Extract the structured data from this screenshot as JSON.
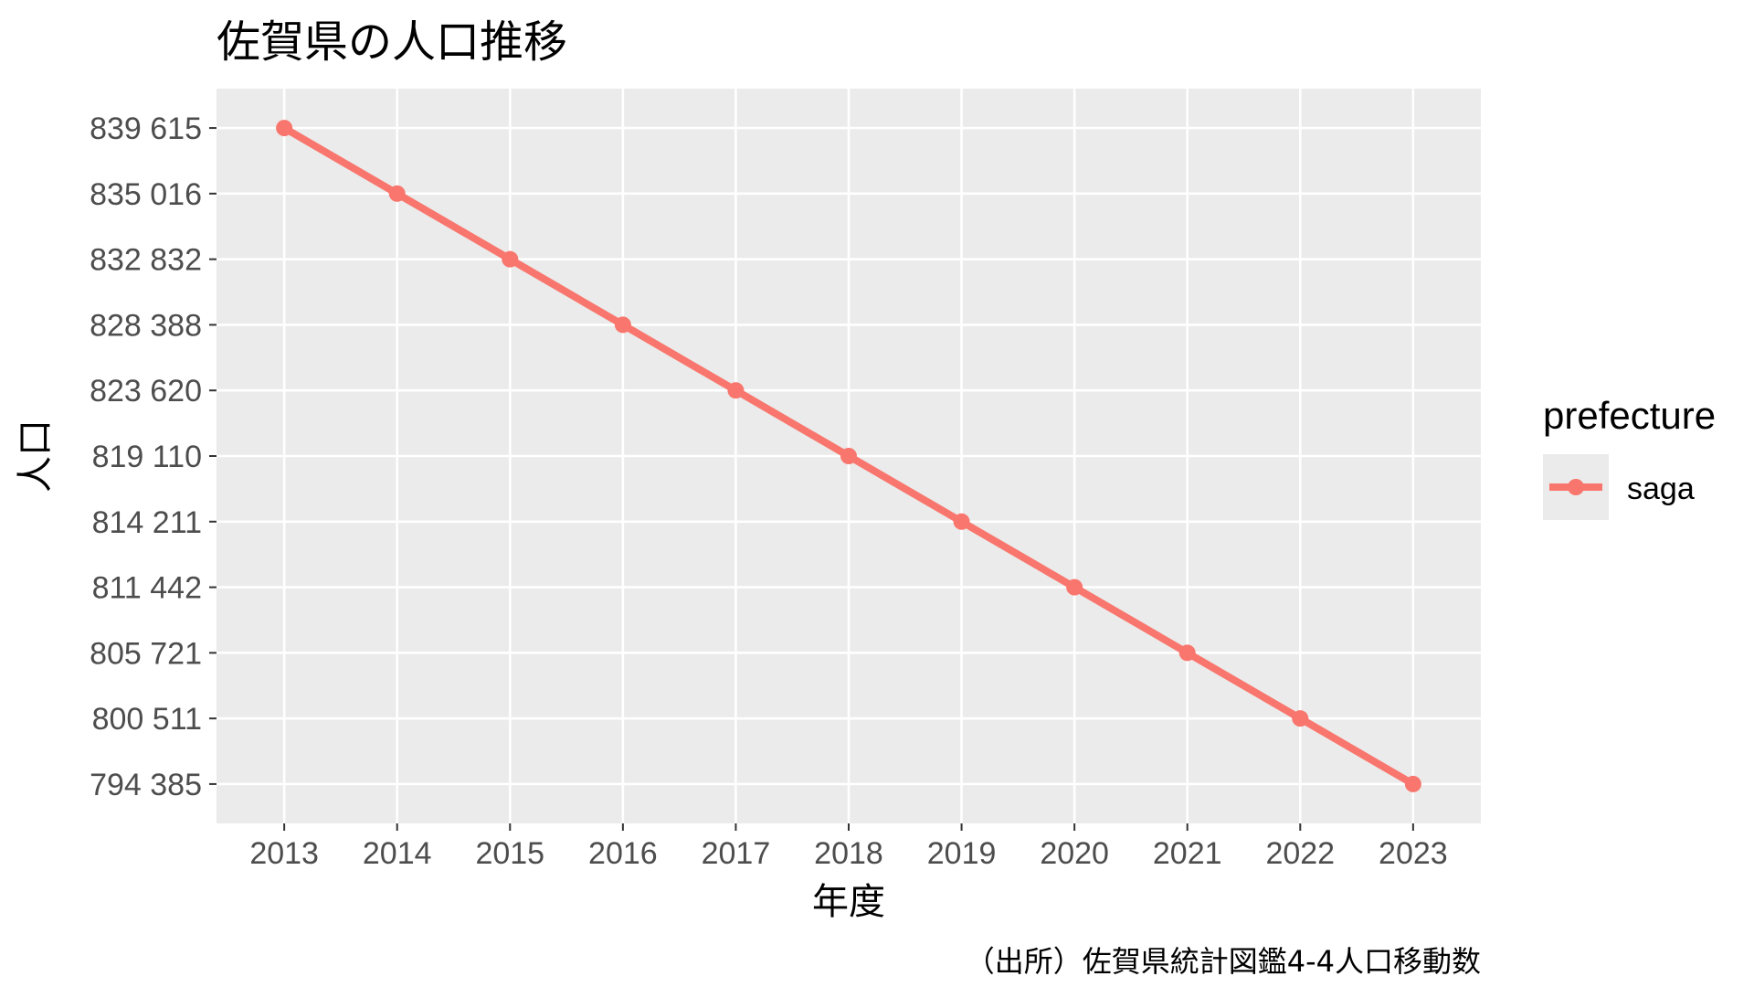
{
  "chart_data": {
    "type": "line",
    "title": "佐賀県の人口推移",
    "xlabel": "年度",
    "ylabel": "人口",
    "caption": "（出所）佐賀県統計図鑑4-4人口移動数",
    "categories": [
      "2013",
      "2014",
      "2015",
      "2016",
      "2017",
      "2018",
      "2019",
      "2020",
      "2021",
      "2022",
      "2023"
    ],
    "y_tick_labels": [
      "839 615",
      "835 016",
      "832 832",
      "828 388",
      "823 620",
      "819 110",
      "814 211",
      "811 442",
      "805 721",
      "800 511",
      "794 385"
    ],
    "y_scale": "discrete (each value its own evenly spaced tick)",
    "series": [
      {
        "name": "saga",
        "color": "#F8766D",
        "values": [
          839615,
          835016,
          832832,
          828388,
          823620,
          819110,
          814211,
          811442,
          805721,
          800511,
          794385
        ]
      }
    ],
    "legend": {
      "title": "prefecture",
      "position": "right"
    },
    "grid": true,
    "panel_background": "#EBEBEB",
    "grid_color": "#FFFFFF"
  }
}
